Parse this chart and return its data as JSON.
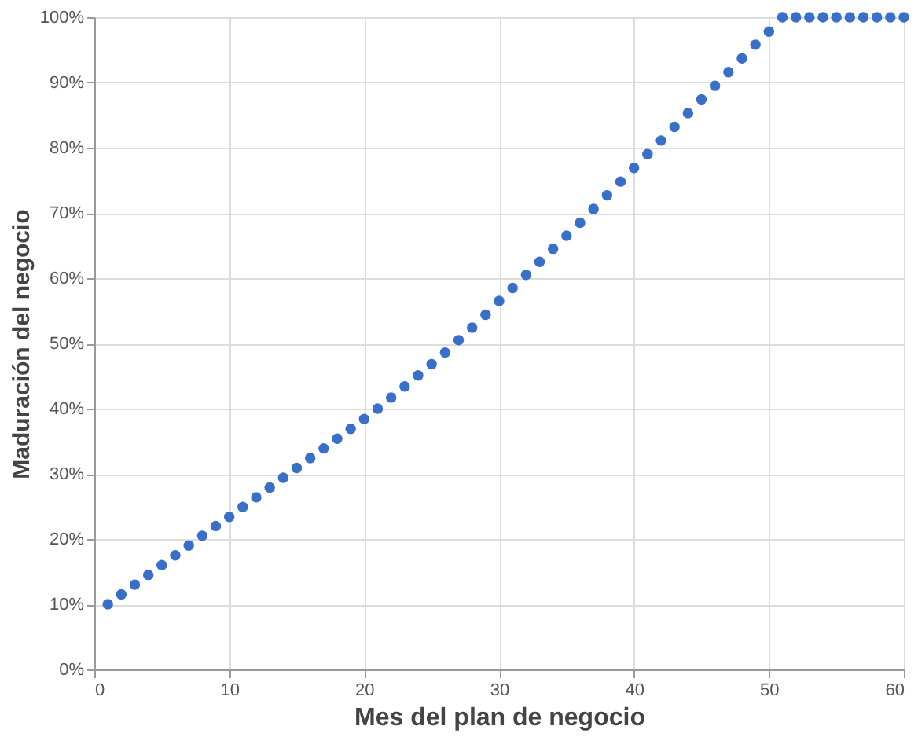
{
  "chart_data": {
    "type": "scatter",
    "xlabel": "Mes del plan de negocio",
    "ylabel": "Maduración del negocio",
    "x": [
      1,
      2,
      3,
      4,
      5,
      6,
      7,
      8,
      9,
      10,
      11,
      12,
      13,
      14,
      15,
      16,
      17,
      18,
      19,
      20,
      21,
      22,
      23,
      24,
      25,
      26,
      27,
      28,
      29,
      30,
      31,
      32,
      33,
      34,
      35,
      36,
      37,
      38,
      39,
      40,
      41,
      42,
      43,
      44,
      45,
      46,
      47,
      48,
      49,
      50,
      51,
      52,
      53,
      54,
      55,
      56,
      57,
      58,
      59,
      60
    ],
    "series": [
      {
        "color": "#3a6fc9",
        "values": [
          10,
          11.5,
          13,
          14.5,
          16,
          17.5,
          19,
          20.5,
          22,
          23.4,
          24.9,
          26.4,
          27.9,
          29.4,
          30.9,
          32.4,
          33.9,
          35.4,
          36.9,
          38.4,
          40,
          41.7,
          43.4,
          45.1,
          46.8,
          48.6,
          50.5,
          52.4,
          54.4,
          56.5,
          58.5,
          60.5,
          62.5,
          64.5,
          66.5,
          68.5,
          70.6,
          72.7,
          74.8,
          76.9,
          79,
          81.1,
          83.2,
          85.3,
          87.4,
          89.5,
          91.6,
          93.7,
          95.8,
          97.8,
          100,
          100,
          100,
          100,
          100,
          100,
          100,
          100,
          100,
          100
        ]
      }
    ],
    "xlim": [
      0,
      60
    ],
    "xticks": [
      0,
      10,
      20,
      30,
      40,
      50,
      60
    ],
    "ylim": [
      0,
      100
    ],
    "yticks": [
      {
        "value": 0,
        "label": "0%"
      },
      {
        "value": 10,
        "label": "10%"
      },
      {
        "value": 20,
        "label": "20%"
      },
      {
        "value": 30,
        "label": "30%"
      },
      {
        "value": 40,
        "label": "40%"
      },
      {
        "value": 50,
        "label": "50%"
      },
      {
        "value": 60,
        "label": "60%"
      },
      {
        "value": 70,
        "label": "70%"
      },
      {
        "value": 80,
        "label": "80%"
      },
      {
        "value": 90,
        "label": "90%"
      },
      {
        "value": 100,
        "label": "100%"
      }
    ],
    "grid": true,
    "marker": "circle",
    "legend": false
  }
}
